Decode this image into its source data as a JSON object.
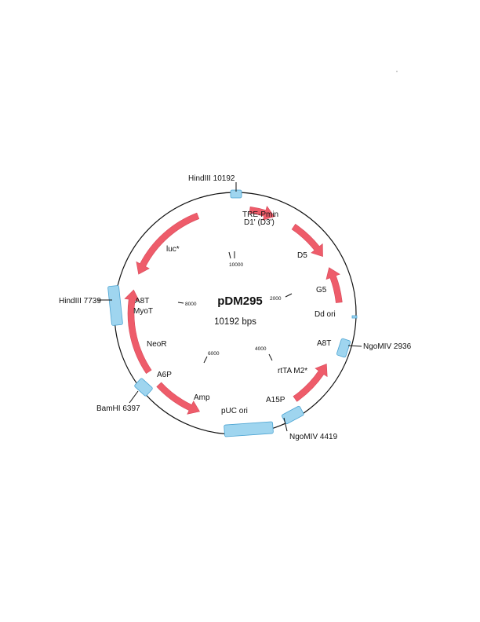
{
  "colors": {
    "backbone": "#111111",
    "feature_arrow": "#ee5c6a",
    "feature_arrow_stroke": "#d8495a",
    "site_block": "#9fd5ef",
    "site_block_stroke": "#4aa3d2"
  },
  "plasmid": {
    "name": "pDM295",
    "size_label": "10192 bps"
  },
  "restriction_sites": [
    {
      "label": "HindIII 10192"
    },
    {
      "label": "NgoMIV 2936"
    },
    {
      "label": "NgoMIV 4419"
    },
    {
      "label": "BamHI 6397"
    },
    {
      "label": "HindIII 7739"
    }
  ],
  "features": [
    {
      "label_lines": [
        "TRE-Pmin",
        "D1' (D3')"
      ]
    },
    {
      "label_lines": [
        "D5"
      ]
    },
    {
      "label_lines": [
        "G5"
      ]
    },
    {
      "label_lines": [
        "Dd ori"
      ]
    },
    {
      "label_lines": [
        "A8T"
      ]
    },
    {
      "label_lines": [
        "rtTA M2*"
      ]
    },
    {
      "label_lines": [
        "A15P"
      ]
    },
    {
      "label_lines": [
        "pUC ori"
      ]
    },
    {
      "label_lines": [
        "Amp"
      ]
    },
    {
      "label_lines": [
        "A6P"
      ]
    },
    {
      "label_lines": [
        "NeoR"
      ]
    },
    {
      "label_lines": [
        "A8T",
        "MyoT"
      ]
    },
    {
      "label_lines": [
        "luc*"
      ]
    }
  ],
  "ticks": [
    "10000",
    "2000",
    "4000",
    "6000",
    "8000"
  ]
}
